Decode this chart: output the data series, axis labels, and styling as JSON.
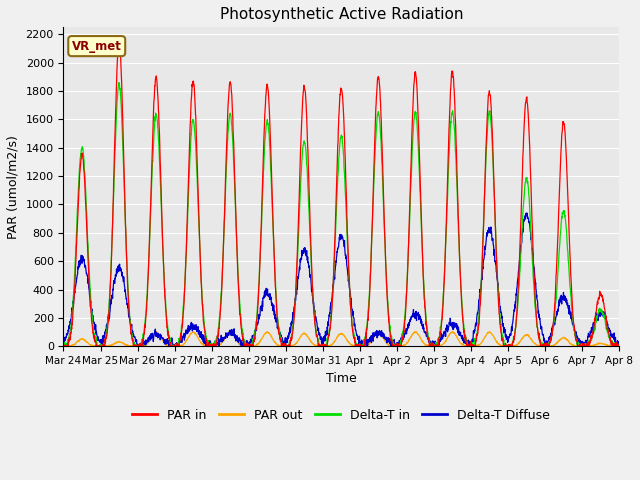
{
  "title": "Photosynthetic Active Radiation",
  "ylabel": "PAR (umol/m2/s)",
  "xlabel": "Time",
  "legend_label": "VR_met",
  "ylim": [
    0,
    2250
  ],
  "yticks": [
    0,
    200,
    400,
    600,
    800,
    1000,
    1200,
    1400,
    1600,
    1800,
    2000,
    2200
  ],
  "series_colors": {
    "PAR in": "#ff0000",
    "PAR out": "#ffa500",
    "Delta-T in": "#00dd00",
    "Delta-T Diffuse": "#0000cc"
  },
  "fig_facecolor": "#f0f0f0",
  "ax_facecolor": "#e8e8e8",
  "grid_color": "#ffffff",
  "tick_labels": [
    "Mar 24",
    "Mar 25",
    "Mar 26",
    "Mar 27",
    "Mar 28",
    "Mar 29",
    "Mar 30",
    "Mar 31",
    "Apr 1",
    "Apr 2",
    "Apr 3",
    "Apr 4",
    "Apr 5",
    "Apr 6",
    "Apr 7",
    "Apr 8"
  ],
  "par_in_peaks": [
    1350,
    2150,
    1900,
    1870,
    1860,
    1840,
    1830,
    1830,
    1900,
    1930,
    1940,
    1800,
    1750,
    1580,
    370
  ],
  "par_out_peaks": [
    50,
    30,
    100,
    100,
    105,
    100,
    90,
    90,
    100,
    100,
    100,
    100,
    80,
    60,
    20
  ],
  "delta_t_peaks": [
    1400,
    1850,
    1630,
    1600,
    1640,
    1590,
    1450,
    1480,
    1650,
    1650,
    1650,
    1650,
    1180,
    950,
    260
  ],
  "delta_t_diff_peaks": [
    620,
    550,
    80,
    140,
    90,
    380,
    680,
    770,
    90,
    230,
    160,
    820,
    930,
    350,
    240
  ]
}
